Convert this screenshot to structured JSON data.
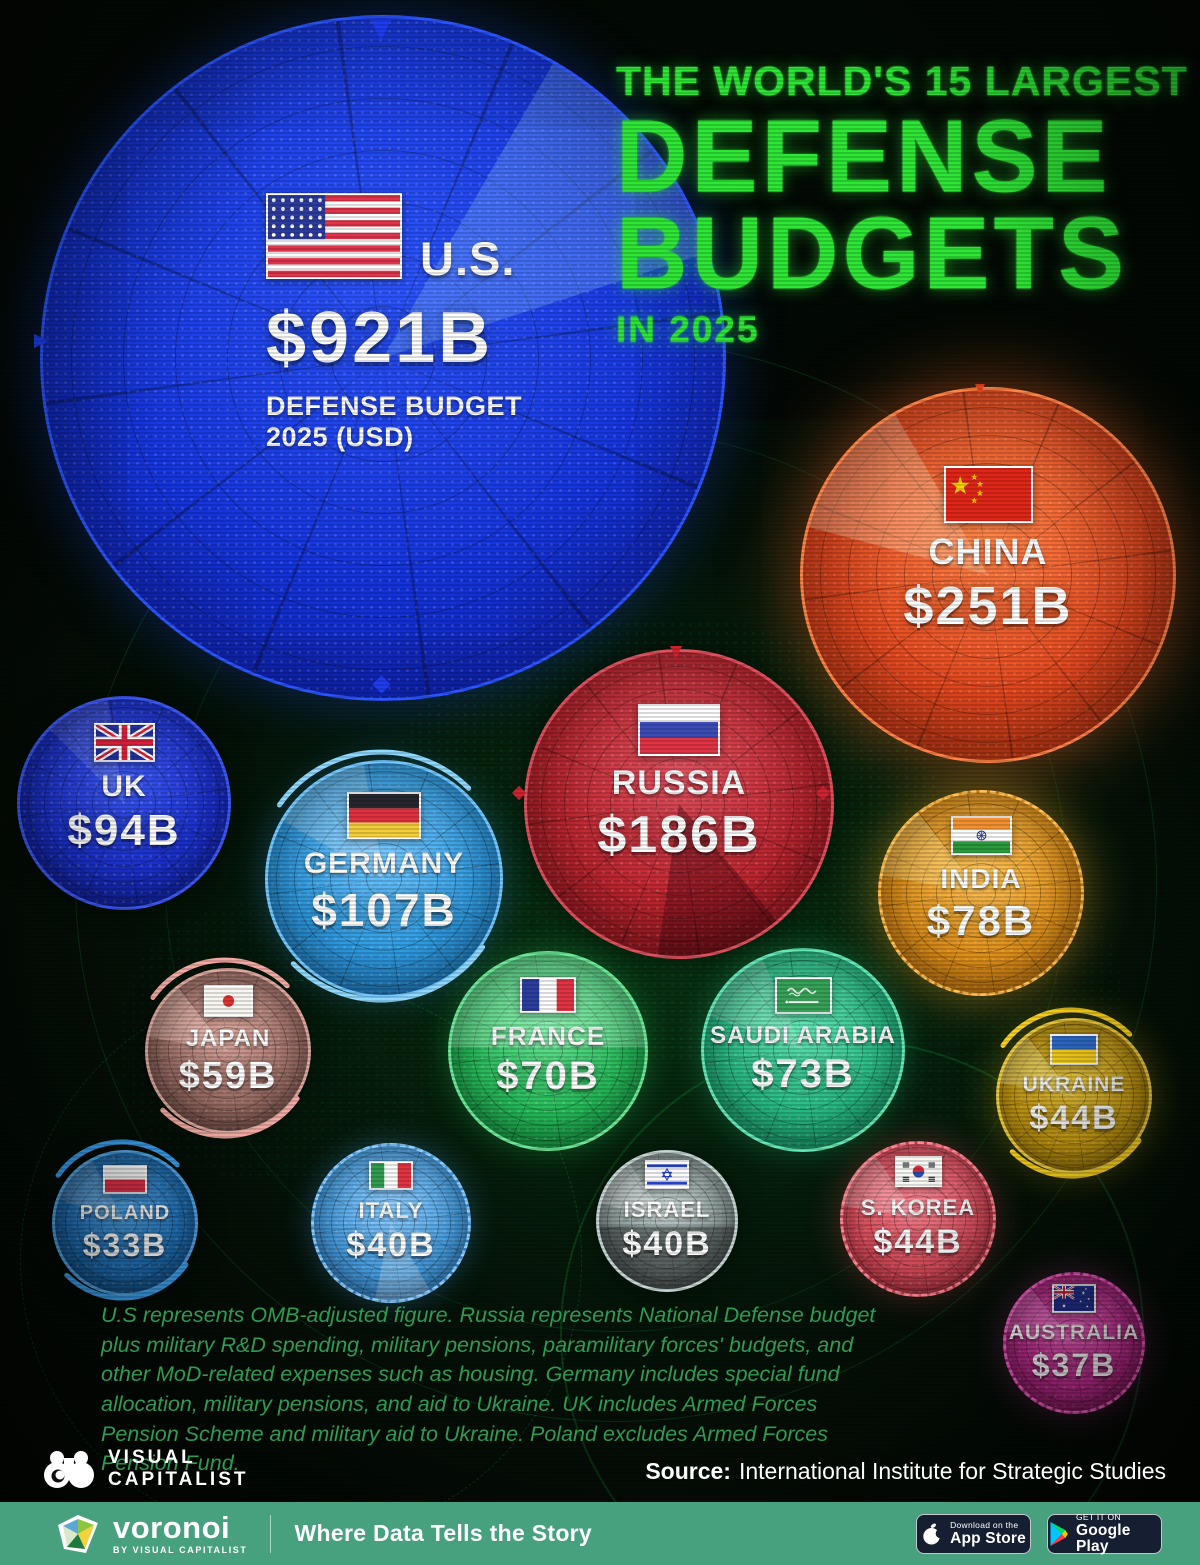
{
  "title": {
    "kicker": "THE WORLD'S 15 LARGEST",
    "word1": "DEFENSE",
    "word2": "BUDGETS",
    "year_line": "IN 2025"
  },
  "labels": {
    "us_sub1": "DEFENSE BUDGET",
    "us_sub2": "2025 (USD)"
  },
  "chart_data": {
    "type": "bubble",
    "title": "The World's 15 Largest Defense Budgets in 2025",
    "unit": "USD billions",
    "legend_position": "none",
    "countries": [
      {
        "id": "us",
        "name": "U.S.",
        "value": 921,
        "label": "$921B"
      },
      {
        "id": "china",
        "name": "CHINA",
        "value": 251,
        "label": "$251B"
      },
      {
        "id": "russia",
        "name": "RUSSIA",
        "value": 186,
        "label": "$186B"
      },
      {
        "id": "germany",
        "name": "GERMANY",
        "value": 107,
        "label": "$107B"
      },
      {
        "id": "uk",
        "name": "UK",
        "value": 94,
        "label": "$94B"
      },
      {
        "id": "india",
        "name": "INDIA",
        "value": 78,
        "label": "$78B"
      },
      {
        "id": "saudi",
        "name": "SAUDI ARABIA",
        "value": 73,
        "label": "$73B"
      },
      {
        "id": "france",
        "name": "FRANCE",
        "value": 70,
        "label": "$70B"
      },
      {
        "id": "japan",
        "name": "JAPAN",
        "value": 59,
        "label": "$59B"
      },
      {
        "id": "ukraine",
        "name": "UKRAINE",
        "value": 44,
        "label": "$44B"
      },
      {
        "id": "skorea",
        "name": "S. KOREA",
        "value": 44,
        "label": "$44B"
      },
      {
        "id": "italy",
        "name": "ITALY",
        "value": 40,
        "label": "$40B"
      },
      {
        "id": "israel",
        "name": "ISRAEL",
        "value": 40,
        "label": "$40B"
      },
      {
        "id": "australia",
        "name": "AUSTRALIA",
        "value": 37,
        "label": "$37B"
      },
      {
        "id": "poland",
        "name": "POLAND",
        "value": 33,
        "label": "$33B"
      }
    ]
  },
  "footnote": "U.S represents OMB-adjusted figure. Russia represents National Defense budget plus military R&D spending, military pensions, paramilitary forces' budgets, and other MoD-related expenses such as housing. Germany includes special fund allocation, military pensions, and aid to Ukraine. UK includes Armed Forces Pension Scheme and military aid to Ukraine. Poland excludes Armed Forces Pension Fund.",
  "source": {
    "label": "Source:",
    "text": "International Institute for Strategic Studies"
  },
  "footer": {
    "vc_line1": "VISUAL",
    "vc_line2": "CAPITALIST",
    "voronoi_name": "voronoi",
    "voronoi_sub": "BY VISUAL CAPITALIST",
    "tagline": "Where Data Tells the Story",
    "appstore_top": "Download on the",
    "appstore_bottom": "App Store",
    "gplay_top": "GET IT ON",
    "gplay_bottom": "Google Play"
  },
  "colors": {
    "title_green": "#2ee636",
    "footnote_green": "#2f9a54",
    "footer_bar": "#47a07e",
    "badge_bg": "#161f31"
  }
}
